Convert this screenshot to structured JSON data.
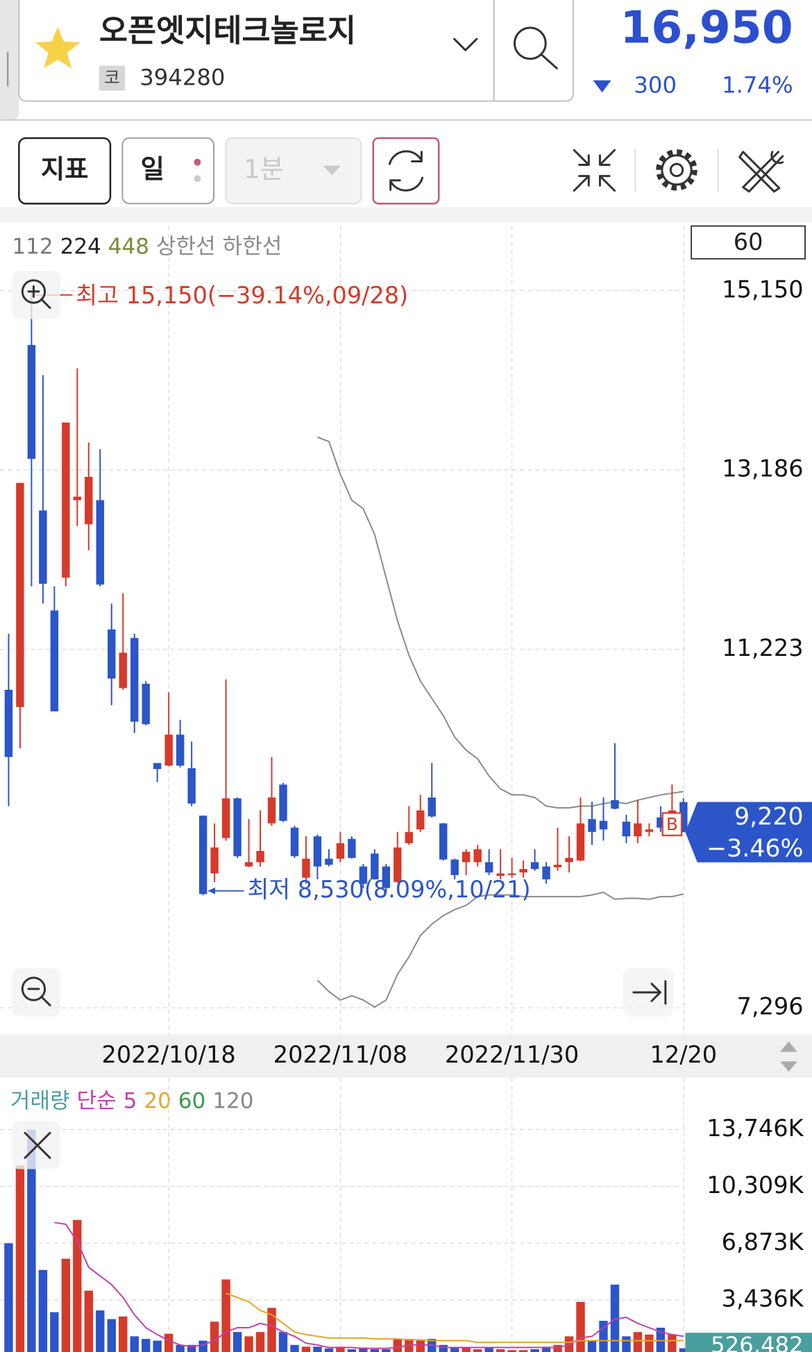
{
  "header": {
    "name": "오픈엣지테크놀로지",
    "market_badge": "코",
    "code": "394280",
    "price": "16,950",
    "change": "300",
    "change_rate": "1.74%"
  },
  "toolbar": {
    "indicator": "지표",
    "period": "일",
    "interval": "1분"
  },
  "chart_data": [
    {
      "type": "candlestick",
      "indicator_legend": [
        {
          "name": "112",
          "color": "#777777"
        },
        {
          "name": "224",
          "color": "#222222"
        },
        {
          "name": "448",
          "color": "#7a8a3a"
        }
      ],
      "count_box": "60",
      "categories": [
        null,
        null,
        null,
        null,
        null,
        null,
        null,
        null,
        null,
        null,
        null,
        null,
        null,
        null,
        "2022/10/18",
        null,
        null,
        null,
        null,
        null,
        null,
        null,
        null,
        null,
        null,
        null,
        null,
        null,
        null,
        "2022/11/08",
        null,
        null,
        null,
        null,
        null,
        null,
        null,
        null,
        null,
        null,
        null,
        null,
        null,
        null,
        "2022/11/30",
        null,
        null,
        null,
        null,
        null,
        null,
        null,
        null,
        null,
        null,
        null,
        null,
        null,
        null,
        "12/20"
      ],
      "open": [
        10779,
        10590,
        14555,
        12743,
        11648,
        12007,
        12856,
        12592,
        12856,
        11440,
        10798,
        11346,
        10845,
        9977,
        9949,
        10288,
        9920,
        9401,
        8768,
        9156,
        9590,
        8844,
        8891,
        9316,
        9741,
        9269,
        8721,
        9174,
        8929,
        8929,
        9146,
        8844,
        8986,
        8844,
        8674,
        9099,
        9250,
        9599,
        9316,
        8920,
        8891,
        8891,
        8891,
        8740,
        8750,
        8778,
        8891,
        8844,
        8835,
        8891,
        8910,
        9363,
        9344,
        9571,
        9335,
        9174,
        9222,
        9382,
        9344,
        9550
      ],
      "high": [
        11393,
        13045,
        15150,
        14225,
        11912,
        13706,
        14300,
        13489,
        13413,
        11723,
        11836,
        11393,
        10874,
        9977,
        10751,
        10449,
        10213,
        9401,
        9316,
        10893,
        9600,
        9363,
        9458,
        10043,
        9760,
        9288,
        9174,
        9193,
        9033,
        9222,
        9174,
        8872,
        9033,
        8872,
        9222,
        9505,
        9628,
        9977,
        9320,
        8930,
        9033,
        9080,
        9033,
        9033,
        8938,
        8910,
        9033,
        8891,
        9269,
        9174,
        9599,
        9552,
        9599,
        10194,
        9410,
        9571,
        9316,
        9505,
        9741,
        9590
      ],
      "low": [
        9505,
        10137,
        11912,
        11723,
        10543,
        11912,
        12573,
        12308,
        11912,
        10609,
        10779,
        10307,
        10390,
        9769,
        9940,
        9930,
        9505,
        8530,
        8674,
        9127,
        8938,
        8840,
        8844,
        9288,
        9330,
        8938,
        8655,
        8703,
        8844,
        8891,
        8930,
        8608,
        8700,
        8561,
        8665,
        9080,
        9222,
        9380,
        8910,
        8703,
        8750,
        8844,
        8750,
        8703,
        8721,
        8721,
        8797,
        8655,
        8797,
        8778,
        8900,
        9080,
        9127,
        9470,
        9099,
        9099,
        9174,
        9222,
        9174,
        9220
      ],
      "close": [
        10043,
        13045,
        13309,
        11940,
        10543,
        13706,
        12894,
        13111,
        11931,
        10902,
        11185,
        10430,
        10402,
        9911,
        10288,
        9949,
        9533,
        8542,
        9052,
        9590,
        8957,
        8891,
        9014,
        9599,
        9344,
        8957,
        8929,
        8844,
        8863,
        9099,
        8938,
        8655,
        8703,
        8608,
        9052,
        9222,
        9458,
        9392,
        8920,
        8750,
        9005,
        9033,
        8778,
        8768,
        8768,
        8816,
        8816,
        8703,
        8863,
        8938,
        9316,
        9222,
        9250,
        9477,
        9174,
        9316,
        9250,
        9269,
        9458,
        9220
      ],
      "up_color": "#d63a2a",
      "down_color": "#2b55c9",
      "series": [
        {
          "name": "상한선",
          "color": "#8a8a8a",
          "values": [
            null,
            null,
            null,
            null,
            null,
            null,
            null,
            null,
            null,
            null,
            null,
            null,
            null,
            null,
            null,
            null,
            null,
            null,
            null,
            null,
            null,
            null,
            null,
            null,
            null,
            null,
            null,
            13545,
            13498,
            13140,
            12856,
            12762,
            12479,
            12007,
            11534,
            11157,
            10874,
            10685,
            10496,
            10260,
            10118,
            10024,
            9835,
            9694,
            9628,
            9628,
            9599,
            9505,
            9486,
            9486,
            9505,
            9505,
            9533,
            9552,
            9533,
            9571,
            9599,
            9628,
            9647,
            9665
          ]
        },
        {
          "name": "하한선",
          "color": "#8a8a8a",
          "values": [
            null,
            null,
            null,
            null,
            null,
            null,
            null,
            null,
            null,
            null,
            null,
            null,
            null,
            null,
            null,
            null,
            null,
            null,
            null,
            null,
            null,
            null,
            null,
            null,
            null,
            null,
            null,
            7598,
            7475,
            7381,
            7428,
            7381,
            7305,
            7381,
            7664,
            7853,
            8089,
            8212,
            8306,
            8372,
            8419,
            8514,
            8532,
            8532,
            8532,
            8514,
            8514,
            8514,
            8514,
            8514,
            8514,
            8532,
            8561,
            8485,
            8495,
            8495,
            8485,
            8514,
            8514,
            8542
          ]
        }
      ],
      "ylim": [
        7050,
        15858
      ],
      "yticks": [
        {
          "value": 15150,
          "label": "15,150"
        },
        {
          "value": 13186,
          "label": "13,186"
        },
        {
          "value": 11223,
          "label": "11,223"
        },
        {
          "value": 7296,
          "label": "7,296"
        }
      ],
      "grid": true,
      "high_annotation": {
        "text": "최고 15,150(−39.14%,09/28)",
        "color": "#d63a2a"
      },
      "low_annotation": {
        "text": "최저 8,530(8.09%,10/21)",
        "color": "#2b55c9"
      },
      "current": {
        "label": "9,220",
        "change": "−3.46%",
        "color": "#2b55c9"
      },
      "buy_marker": "B"
    },
    {
      "type": "bar",
      "title": "거래량",
      "ma_type": "단순",
      "values": [
        6873,
        11560,
        13746,
        5259,
        2708,
        5936,
        8279,
        4009,
        2812,
        2291,
        2447,
        1250,
        1093,
        989,
        1406,
        729,
        729,
        989,
        2135,
        4686,
        1510,
        1250,
        1510,
        2968,
        1510,
        729,
        625,
        625,
        521,
        625,
        469,
        573,
        469,
        469,
        1093,
        1093,
        989,
        1093,
        729,
        573,
        573,
        469,
        573,
        469,
        417,
        417,
        469,
        625,
        729,
        1250,
        3333,
        989,
        2187,
        4374,
        1250,
        1510,
        1354,
        1770,
        1354,
        526.482
      ],
      "series": [
        {
          "name": "5",
          "color": "#c23fa8",
          "values": [
            null,
            null,
            null,
            null,
            8123,
            8019,
            6977,
            5415,
            4895,
            4374,
            3593,
            2551,
            1770,
            1354,
            989,
            729,
            625,
            729,
            989,
            1510,
            1770,
            1770,
            2031,
            1875,
            1510,
            1250,
            833,
            729,
            573,
            573,
            573,
            520,
            520,
            520,
            573,
            729,
            729,
            729,
            573,
            573,
            573,
            573,
            573,
            573,
            573,
            573,
            573,
            573,
            573,
            729,
            1146,
            1250,
            1770,
            2291,
            2395,
            2031,
            1770,
            1510,
            1354,
            1250
          ]
        },
        {
          "name": "20",
          "color": "#e0a52a",
          "values": [
            null,
            null,
            null,
            null,
            null,
            null,
            null,
            null,
            null,
            null,
            null,
            null,
            null,
            null,
            null,
            null,
            null,
            null,
            null,
            3853,
            3593,
            3333,
            2812,
            2551,
            2031,
            1510,
            1354,
            1250,
            1146,
            1146,
            1146,
            1146,
            1093,
            1093,
            1093,
            1041,
            1041,
            989,
            989,
            989,
            989,
            885,
            885,
            885,
            885,
            885,
            885,
            885,
            885,
            885,
            989,
            989,
            989,
            989,
            989,
            989,
            989,
            989,
            989,
            989
          ]
        }
      ],
      "legend_extra": [
        {
          "name": "60",
          "color": "#3b9a4a"
        },
        {
          "name": "120",
          "color": "#888888"
        }
      ],
      "ylim": [
        0,
        16246
      ],
      "yticks": [
        {
          "value": 13746,
          "label": "13,746K"
        },
        {
          "value": 10309,
          "label": "10,309K"
        },
        {
          "value": 6873,
          "label": "6,873K"
        },
        {
          "value": 3436,
          "label": "3,436K"
        }
      ],
      "grid": true,
      "current_label": "526,482",
      "current_color": "#4a9e9e"
    }
  ]
}
